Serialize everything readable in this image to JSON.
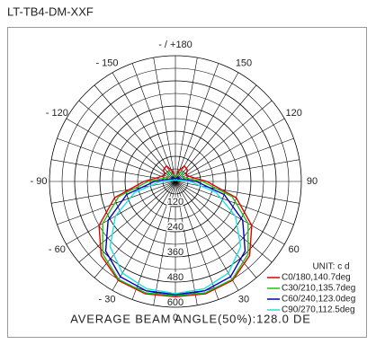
{
  "chart_data": {
    "type": "polar",
    "title": "LT-TB4-DM-XXF",
    "footer": "AVERAGE BEAM ANGLE(50%):128.0 DE",
    "unit_label": "UNIT: c d",
    "rlim": [
      0,
      600
    ],
    "rticks": [
      120,
      240,
      360,
      480,
      600
    ],
    "angle_ticks": [
      {
        "value": -180,
        "label": "- / +180"
      },
      {
        "value": 150,
        "label": "150"
      },
      {
        "value": 120,
        "label": "120"
      },
      {
        "value": 90,
        "label": "90"
      },
      {
        "value": 60,
        "label": "60"
      },
      {
        "value": 30,
        "label": "30"
      },
      {
        "value": 0,
        "label": "0"
      },
      {
        "value": -30,
        "label": "- 30"
      },
      {
        "value": -60,
        "label": "- 60"
      },
      {
        "value": -90,
        "label": "- 90"
      },
      {
        "value": -120,
        "label": "- 120"
      },
      {
        "value": -150,
        "label": "- 150"
      }
    ],
    "x": [
      -180,
      -165,
      -150,
      -135,
      -120,
      -105,
      -90,
      -75,
      -60,
      -45,
      -30,
      -15,
      0,
      15,
      30,
      45,
      60,
      75,
      90,
      105,
      120,
      135,
      150,
      165,
      180
    ],
    "series": [
      {
        "name": "C0/180,140.7deg",
        "color": "#e00000",
        "values": [
          10,
          50,
          85,
          80,
          60,
          80,
          150,
          300,
          420,
          500,
          545,
          555,
          550,
          555,
          545,
          500,
          420,
          300,
          150,
          80,
          60,
          80,
          85,
          50,
          10
        ]
      },
      {
        "name": "C30/210,135.7deg",
        "color": "#20c020",
        "values": [
          10,
          30,
          55,
          50,
          40,
          60,
          130,
          280,
          400,
          490,
          540,
          550,
          545,
          550,
          540,
          490,
          400,
          280,
          130,
          60,
          40,
          50,
          55,
          30,
          10
        ]
      },
      {
        "name": "C60/240,123.0deg",
        "color": "#0000c0",
        "values": [
          10,
          15,
          25,
          25,
          20,
          40,
          100,
          240,
          370,
          470,
          525,
          540,
          540,
          540,
          525,
          470,
          370,
          240,
          100,
          40,
          20,
          25,
          25,
          15,
          10
        ]
      },
      {
        "name": "C90/270,112.5deg",
        "color": "#20e0e0",
        "values": [
          5,
          5,
          10,
          10,
          10,
          25,
          70,
          200,
          330,
          440,
          505,
          530,
          535,
          530,
          505,
          440,
          330,
          200,
          70,
          25,
          10,
          10,
          10,
          5,
          5
        ]
      }
    ]
  }
}
